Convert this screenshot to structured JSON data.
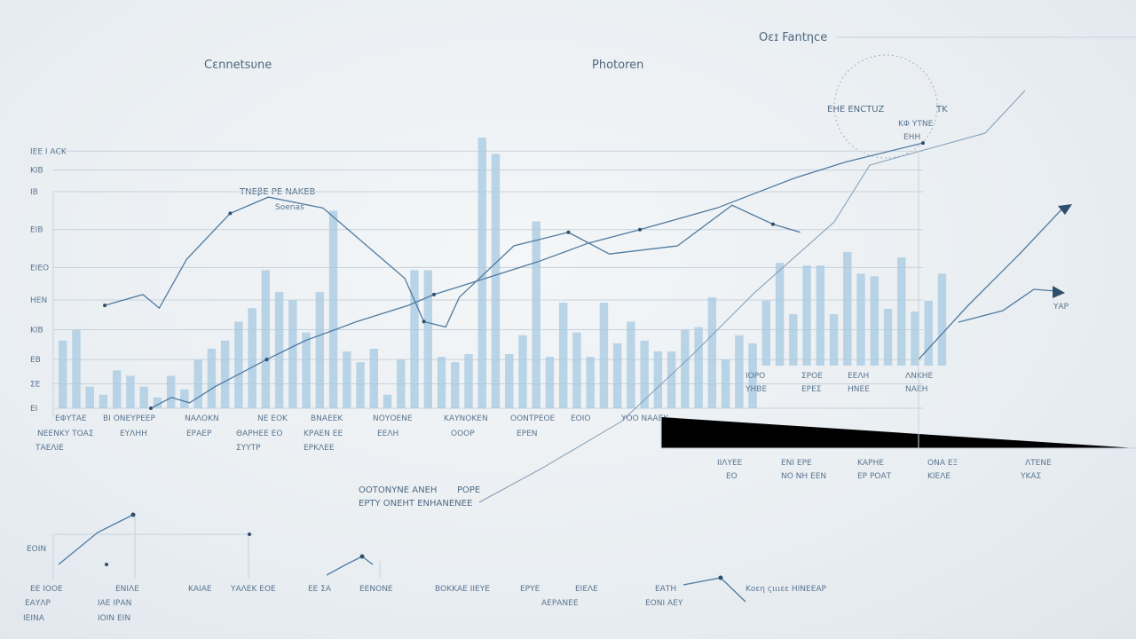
{
  "chart_data": {
    "type": "bar",
    "title_left": "Cεnnetsυne",
    "title_center": "Ρhοtοren",
    "title_right": "Οεɪ Fantηce",
    "top_annotation": "ΤΝΕβΕ ΡΕ ΝΑΚΕΒ",
    "top_annotation_sub": "Sοenas",
    "badge_lines": [
      "ΕΗΕ ΕΝCΤUΖ",
      "ΤΚ",
      "ΚΦ ΥΤΝΕ",
      "ΕΗΗ"
    ],
    "ylim": [
      0,
      100
    ],
    "y_tick_labels": [
      "ΙΕΕ Ι ΑCΚ",
      "ΚΙΒ",
      "ΙΒ",
      "ΕΙΒ",
      "ΕΙΕΟ",
      "ΗΕΝ",
      "ΚΙΒ",
      "ΕΒ",
      "ΣΕ",
      "ΕΙ"
    ],
    "y_tick_values": [
      95,
      88,
      80,
      66,
      52,
      40,
      29,
      18,
      9,
      0
    ],
    "values": [
      25,
      29,
      8,
      5,
      14,
      12,
      8,
      4,
      12,
      7,
      18,
      22,
      25,
      32,
      37,
      51,
      43,
      40,
      28,
      43,
      73,
      21,
      17,
      22,
      5,
      18,
      51,
      51,
      19,
      17,
      20,
      100,
      94,
      20,
      27,
      69,
      19,
      39,
      28,
      19,
      39,
      24,
      32,
      25,
      21,
      21,
      29,
      30,
      41,
      18,
      27,
      24,
      24,
      38,
      19,
      37,
      37,
      19,
      42,
      34,
      33,
      21,
      40,
      20,
      24,
      34
    ],
    "series": [
      {
        "name": "upper",
        "x": [
          0,
          14,
          20,
          30,
          46,
          60,
          80,
          110,
          117,
          125,
          130,
          150,
          170,
          185,
          210,
          230,
          245,
          255
        ],
        "y": [
          38,
          42,
          37,
          55,
          72,
          78,
          74,
          48,
          32,
          30,
          41,
          60,
          65,
          57,
          60,
          75,
          68,
          65
        ]
      },
      {
        "name": "lower",
        "x": [
          0,
          8,
          15,
          25,
          45,
          60,
          80,
          100,
          110,
          130,
          150,
          170,
          190,
          220,
          250,
          270,
          300
        ],
        "y": [
          0,
          4,
          2,
          8,
          18,
          25,
          32,
          38,
          42,
          48,
          54,
          61,
          66,
          74,
          85,
          91,
          98
        ]
      }
    ],
    "x_tick_labels_row1": [
      "ΕΦΥΤΑΕ",
      "ΒΙ ΟΝΕΥΡΕΕΡ",
      "ΝΑΛΟΚΝ",
      "ΝΕ ΕΟΚ",
      "ΒΝΑΕΕΚ",
      "ΝΟΥΟΕΝΕ",
      "ΚΑΥΝΟΚΕΝ",
      "ΟΟΝΤΡΕΟΕ",
      "ΕΟΙΟ",
      "ΥΟΟ ΝΑΑΕΚ"
    ],
    "x_tick_labels_row2": [
      "ΝΕΕΝΚΥ ΤΟΑΣ",
      "ΕΥΛΗΗ",
      "ΕΡΑΕΡ",
      "ΘΑΡΗΕΕ ΕΟ",
      "ΚΡΑΕΝ ΕΕ",
      "ΕΕΛΗ",
      "ΟΟΟΡ",
      "ΕΡΕΝ"
    ],
    "x_tick_labels_row3": [
      "ΤΑΕΛΙΕ",
      "ΣΥΥΤΡ",
      "ΕΡΚΛΕΕ"
    ],
    "right_labels_top": [
      "ΙΟΡΟ",
      "ΣΡΟΕ",
      "ΕΕΛΗ",
      "ΛΝΚΗΕ"
    ],
    "right_labels_bottom": [
      "ΥΗΒΕ",
      "ΕΡΕΣ",
      "ΗΝΕΕ",
      "ΝΑΕΗ"
    ],
    "right_axis_label": "ΥΑΡ",
    "mid_annotation_line1": "ΟΟΤΟΝΥΝΕ ΑΝΕΗ",
    "mid_annotation_line1b": "ΡΟΡΕ",
    "mid_annotation_line2": "ΕΡΤΥ ΟΝΕΗΤ ΕΝΗΑΝΕΝΕΕ",
    "sub_right_labels": [
      "ΙΙΛΥΕΕ",
      "ΕΝΙ ΕΡΕ",
      "ΚΑΡΗΕ",
      "ΟΝΑ ΕΞ",
      "ΛΤΕΝΕ"
    ],
    "sub_right_labels2": [
      "ΕΟ",
      "ΝΟ ΝΗ ΕΕΝ",
      "ΕΡ ΡΟΑΤ",
      "ΚΙΕΛΕ",
      "ΥΚΑΣ"
    ],
    "bottom_labels_row1": [
      "ΕΕ ΙΟΟΕ",
      "ΕΝΙΛΕ",
      "ΚΑΙΑΕ",
      "ΥΑΛΕΚ ΕΟΕ",
      "ΕΕ ΣΑ",
      "ΕΕΝΟΝΕ",
      "ΒΟΚΚΑΕ ΙΙΕΥΕ",
      "ΕΡΥΕ",
      "ΕΙΕΛΕ",
      "ΕΑΤΗ",
      "Κοεη ςιιιεε ΗΙΝΕΕΑΡ"
    ],
    "bottom_labels_row2": [
      "ΕΑΥΛΡ",
      "ΙΑΕ ΙΡΑΝ",
      "ΑΕΡΑΝΕΕ",
      "ΕΟΝΙ ΑΕΥ"
    ],
    "bottom_labels_row3": [
      "ΙΕΙΝΑ",
      "ΙΟΙΝ ΕΙΝ"
    ],
    "bottom_side_label": "ΕΟΙΝ"
  },
  "colors": {
    "bar": "#a9cbe2",
    "line": "#4f7aa0",
    "ink": "#4f6a84",
    "grid": "#c7d2dc"
  }
}
